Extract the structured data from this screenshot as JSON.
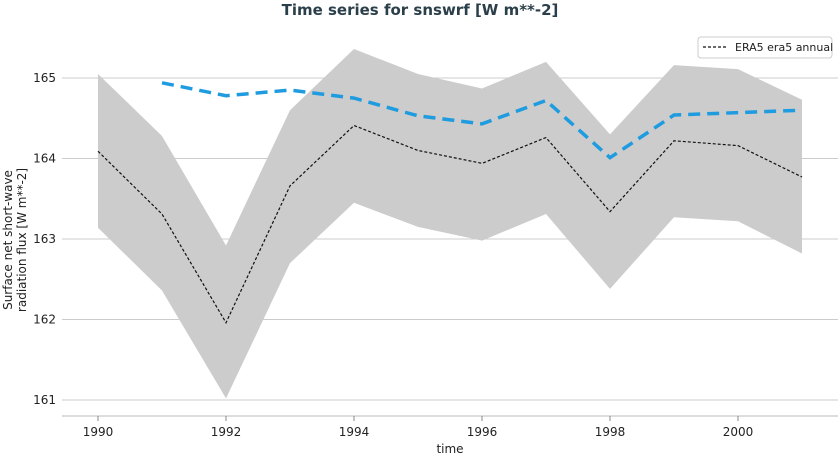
{
  "chart_data": {
    "type": "line",
    "title": "Time series for snswrf [W m**-2]",
    "xlabel": "time",
    "ylabel": "Surface net short-wave radiation flux [W m**-2]",
    "ylabel_lines": [
      "Surface net short-wave",
      "radiation flux [W m**-2]"
    ],
    "xlim": [
      1989.4,
      2001.5
    ],
    "ylim": [
      160.8,
      165.8
    ],
    "xticks": [
      1990,
      1992,
      1994,
      1996,
      1998,
      2000
    ],
    "yticks": [
      161,
      162,
      163,
      164,
      165
    ],
    "grid": "horizontal",
    "legend_position": "top-right",
    "x": [
      1990,
      1991,
      1992,
      1993,
      1994,
      1995,
      1996,
      1997,
      1998,
      1999,
      2000,
      2001
    ],
    "band": {
      "color": "#cccccc",
      "upper": [
        165.05,
        164.28,
        162.92,
        164.6,
        165.36,
        165.05,
        164.87,
        165.2,
        164.3,
        165.16,
        165.11,
        164.73
      ],
      "lower": [
        163.14,
        162.36,
        161.02,
        162.7,
        163.45,
        163.15,
        162.98,
        163.31,
        162.38,
        163.27,
        163.22,
        162.82
      ]
    },
    "series": [
      {
        "name": "ERA5 era5 annual",
        "color": "#111111",
        "style": "dashed",
        "x": [
          1990,
          1991,
          1992,
          1993,
          1994,
          1995,
          1996,
          1997,
          1998,
          1999,
          2000,
          2001
        ],
        "values": [
          164.09,
          163.31,
          161.96,
          163.66,
          164.41,
          164.1,
          163.94,
          164.26,
          163.34,
          164.22,
          164.16,
          163.77
        ]
      },
      {
        "color": "#1f9be0",
        "style": "dashed-thick",
        "x": [
          1991,
          1992,
          1993,
          1994,
          1995,
          1996,
          1997,
          1998,
          1999,
          2000,
          2001
        ],
        "values": [
          164.94,
          164.78,
          164.85,
          164.75,
          164.53,
          164.43,
          164.72,
          164.01,
          164.54,
          164.57,
          164.6
        ]
      }
    ]
  }
}
